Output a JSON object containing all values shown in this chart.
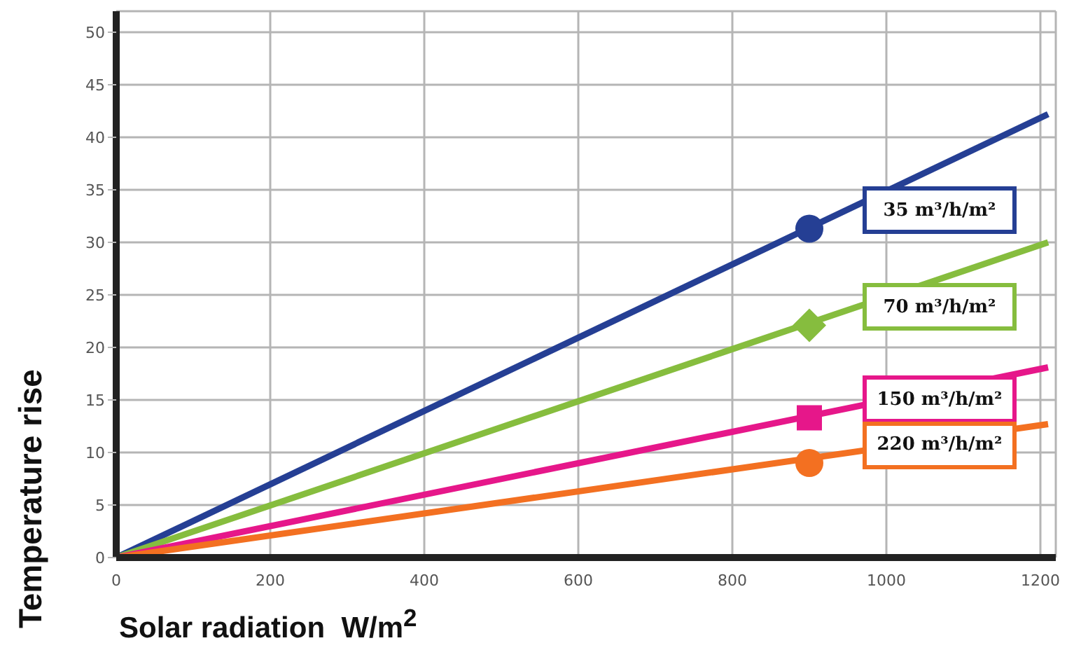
{
  "chart_data": {
    "type": "line",
    "xlabel": "Solar radiation  W/m$^{2}$",
    "ylabel": "Temperature rise",
    "xlim": [
      0,
      1220
    ],
    "xticks": [
      0,
      200,
      400,
      600,
      800,
      1000,
      1200
    ],
    "ylim": [
      0,
      52
    ],
    "yticks": [
      0,
      5,
      10,
      15,
      20,
      25,
      30,
      35,
      40,
      45,
      50
    ],
    "grid": true,
    "marker": "none",
    "series": [
      {
        "name": "35 m³/h/m²",
        "color": "#253f94",
        "x": [
          0,
          1210
        ],
        "values": [
          0,
          42.2
        ]
      },
      {
        "name": "70 m³/h/m²",
        "color": "#86bd3e",
        "x": [
          0,
          1210
        ],
        "values": [
          0,
          30.0
        ]
      },
      {
        "name": "150 m³/h/m²",
        "color": "#e6178a",
        "x": [
          0,
          1210
        ],
        "values": [
          0,
          18.1
        ]
      },
      {
        "name": "220 m³/h/m²",
        "color": "#f37021",
        "x": [
          0,
          1210
        ],
        "values": [
          0,
          12.7
        ]
      },
      {
        "type": "scatter",
        "color": "#253f94",
        "marker": "circle",
        "x": [
          900
        ],
        "values": [
          31.3
        ]
      },
      {
        "type": "scatter",
        "color": "#86bd3e",
        "marker": "diamond",
        "x": [
          900
        ],
        "values": [
          22.1
        ]
      },
      {
        "type": "scatter",
        "color": "#e6178a",
        "marker": "square",
        "x": [
          900
        ],
        "values": [
          13.3
        ]
      },
      {
        "type": "scatter",
        "color": "#f37021",
        "marker": "circle",
        "x": [
          900
        ],
        "values": [
          9.0
        ]
      }
    ]
  }
}
